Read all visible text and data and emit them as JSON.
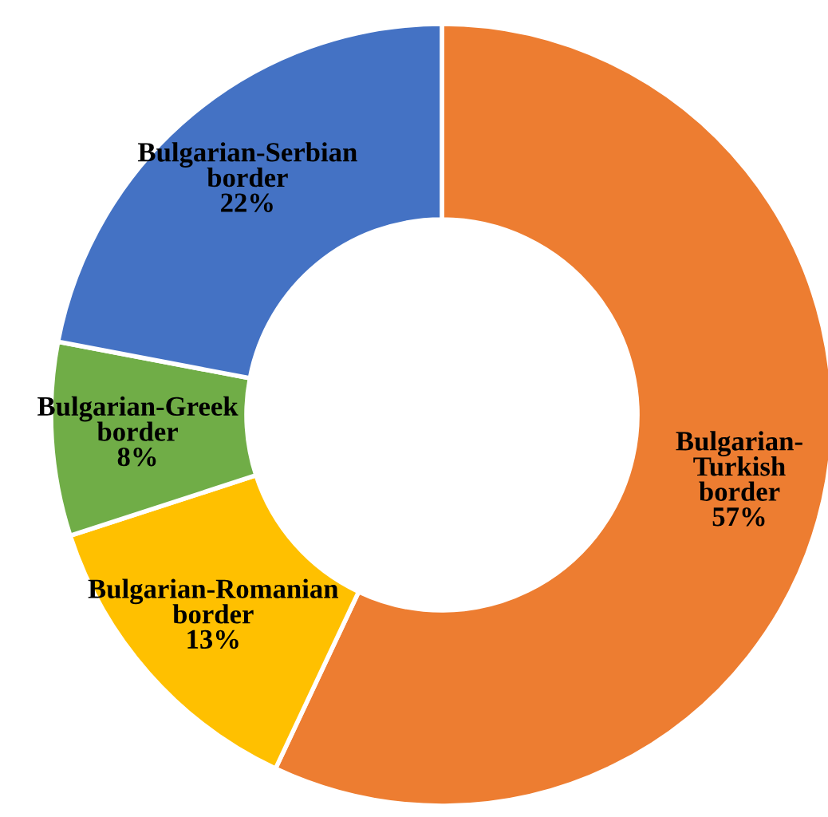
{
  "chart_data": {
    "type": "donut",
    "categories": [
      "Bulgarian-Turkish border",
      "Bulgarian-Romanian border",
      "Bulgarian-Greek border",
      "Bulgarian-Serbian border"
    ],
    "values": [
      57,
      13,
      8,
      22
    ],
    "value_labels": [
      "57%",
      "13%",
      "8%",
      "22%"
    ],
    "colors": [
      "#ed7d31",
      "#ffc000",
      "#70ad47",
      "#4472c4"
    ],
    "legend": false
  }
}
